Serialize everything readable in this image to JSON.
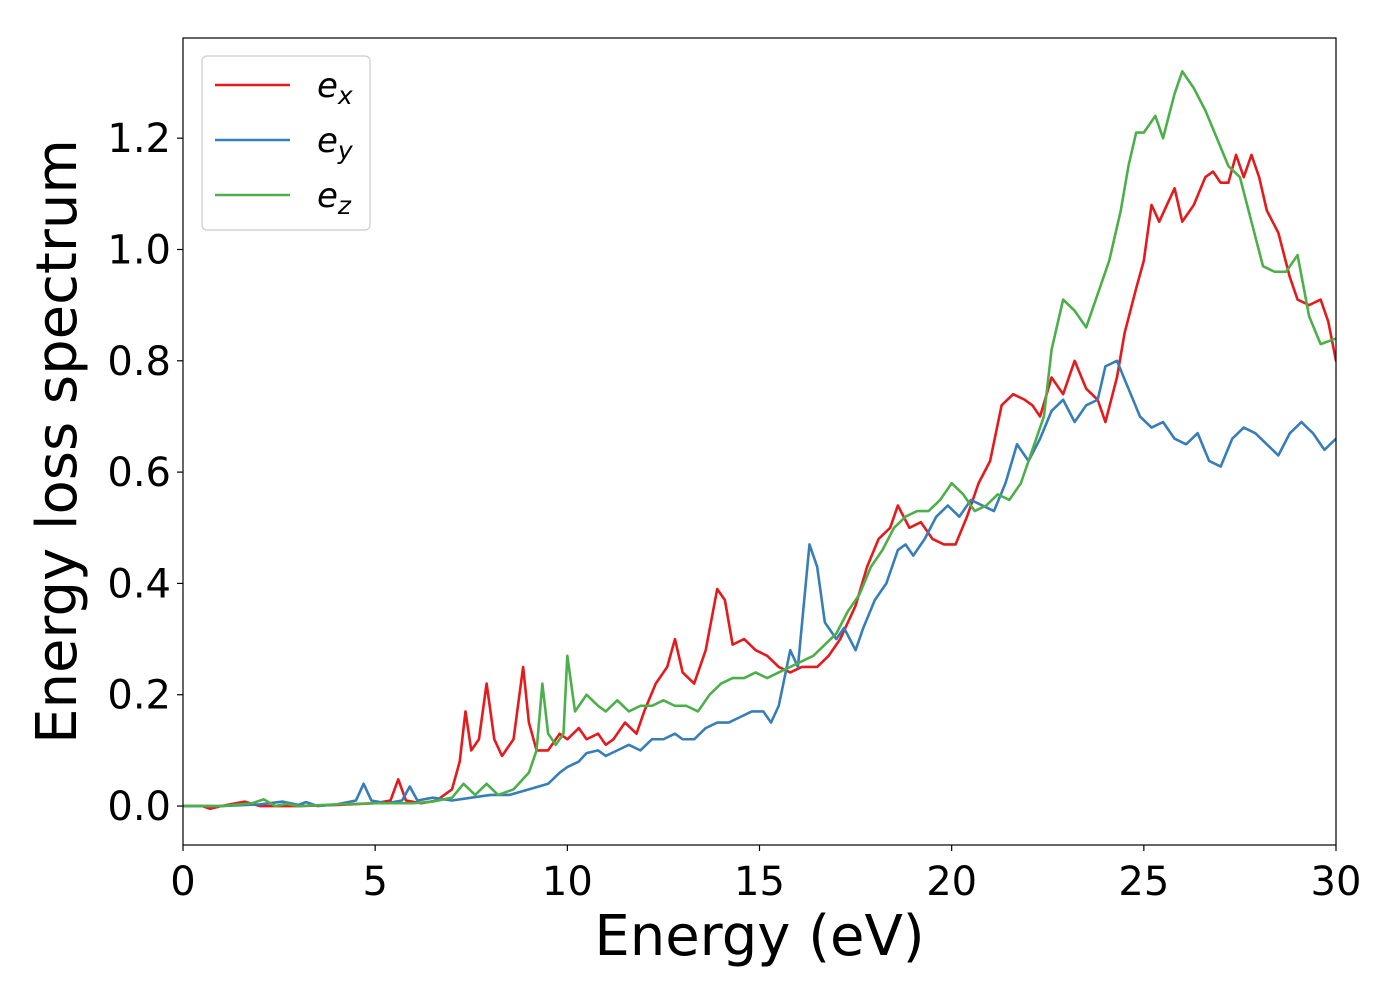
{
  "chart_data": {
    "type": "line",
    "xlabel": "Energy (eV)",
    "ylabel": "Energy loss spectrum",
    "xlim": [
      0,
      30
    ],
    "ylim": [
      -0.07,
      1.38
    ],
    "xticks": [
      0,
      5,
      10,
      15,
      20,
      25,
      30
    ],
    "xtick_labels": [
      "0",
      "5",
      "10",
      "15",
      "20",
      "25",
      "30"
    ],
    "yticks": [
      0.0,
      0.2,
      0.4,
      0.6,
      0.8,
      1.0,
      1.2
    ],
    "ytick_labels": [
      "0.0",
      "0.2",
      "0.4",
      "0.6",
      "0.8",
      "1.0",
      "1.2"
    ],
    "grid": false,
    "legend_position": "top-left",
    "series": [
      {
        "name": "e",
        "subscript": "x",
        "color": "#e41a1c",
        "points": [
          [
            0,
            0
          ],
          [
            0.5,
            0
          ],
          [
            0.7,
            -0.005
          ],
          [
            1.0,
            0.0
          ],
          [
            1.6,
            0.008
          ],
          [
            2.0,
            0.0
          ],
          [
            3.0,
            0.0
          ],
          [
            4.0,
            0.002
          ],
          [
            5.0,
            0.005
          ],
          [
            5.4,
            0.01
          ],
          [
            5.6,
            0.048
          ],
          [
            5.8,
            0.01
          ],
          [
            6.2,
            0.005
          ],
          [
            6.6,
            0.01
          ],
          [
            7.0,
            0.03
          ],
          [
            7.2,
            0.08
          ],
          [
            7.35,
            0.17
          ],
          [
            7.5,
            0.1
          ],
          [
            7.7,
            0.12
          ],
          [
            7.9,
            0.22
          ],
          [
            8.1,
            0.12
          ],
          [
            8.3,
            0.09
          ],
          [
            8.6,
            0.12
          ],
          [
            8.85,
            0.25
          ],
          [
            9.0,
            0.15
          ],
          [
            9.2,
            0.1
          ],
          [
            9.5,
            0.1
          ],
          [
            9.8,
            0.13
          ],
          [
            10.0,
            0.12
          ],
          [
            10.3,
            0.14
          ],
          [
            10.5,
            0.12
          ],
          [
            10.8,
            0.13
          ],
          [
            11.0,
            0.11
          ],
          [
            11.2,
            0.12
          ],
          [
            11.5,
            0.15
          ],
          [
            11.8,
            0.13
          ],
          [
            12.0,
            0.17
          ],
          [
            12.3,
            0.22
          ],
          [
            12.6,
            0.25
          ],
          [
            12.8,
            0.3
          ],
          [
            13.0,
            0.24
          ],
          [
            13.3,
            0.22
          ],
          [
            13.6,
            0.28
          ],
          [
            13.9,
            0.39
          ],
          [
            14.1,
            0.37
          ],
          [
            14.3,
            0.29
          ],
          [
            14.6,
            0.3
          ],
          [
            14.9,
            0.28
          ],
          [
            15.2,
            0.27
          ],
          [
            15.5,
            0.25
          ],
          [
            15.8,
            0.24
          ],
          [
            16.1,
            0.25
          ],
          [
            16.5,
            0.25
          ],
          [
            16.8,
            0.27
          ],
          [
            17.1,
            0.3
          ],
          [
            17.5,
            0.36
          ],
          [
            17.8,
            0.43
          ],
          [
            18.1,
            0.48
          ],
          [
            18.4,
            0.5
          ],
          [
            18.6,
            0.54
          ],
          [
            18.9,
            0.5
          ],
          [
            19.2,
            0.51
          ],
          [
            19.5,
            0.48
          ],
          [
            19.8,
            0.47
          ],
          [
            20.1,
            0.47
          ],
          [
            20.4,
            0.52
          ],
          [
            20.7,
            0.58
          ],
          [
            21.0,
            0.62
          ],
          [
            21.3,
            0.72
          ],
          [
            21.6,
            0.74
          ],
          [
            21.9,
            0.73
          ],
          [
            22.1,
            0.72
          ],
          [
            22.3,
            0.7
          ],
          [
            22.6,
            0.77
          ],
          [
            22.9,
            0.74
          ],
          [
            23.2,
            0.8
          ],
          [
            23.5,
            0.75
          ],
          [
            23.8,
            0.73
          ],
          [
            24.0,
            0.69
          ],
          [
            24.3,
            0.77
          ],
          [
            24.5,
            0.85
          ],
          [
            24.8,
            0.93
          ],
          [
            25.0,
            0.98
          ],
          [
            25.2,
            1.08
          ],
          [
            25.4,
            1.05
          ],
          [
            25.6,
            1.08
          ],
          [
            25.8,
            1.11
          ],
          [
            26.0,
            1.05
          ],
          [
            26.3,
            1.08
          ],
          [
            26.6,
            1.13
          ],
          [
            26.8,
            1.14
          ],
          [
            27.0,
            1.12
          ],
          [
            27.2,
            1.12
          ],
          [
            27.4,
            1.17
          ],
          [
            27.6,
            1.13
          ],
          [
            27.8,
            1.17
          ],
          [
            28.0,
            1.13
          ],
          [
            28.2,
            1.07
          ],
          [
            28.5,
            1.03
          ],
          [
            28.8,
            0.95
          ],
          [
            29.0,
            0.91
          ],
          [
            29.3,
            0.9
          ],
          [
            29.6,
            0.91
          ],
          [
            29.8,
            0.87
          ],
          [
            30.0,
            0.8
          ]
        ]
      },
      {
        "name": "e",
        "subscript": "y",
        "color": "#377eb8",
        "points": [
          [
            0,
            0
          ],
          [
            1.0,
            0.0
          ],
          [
            2.0,
            0.003
          ],
          [
            2.6,
            0.008
          ],
          [
            3.0,
            0.002
          ],
          [
            3.2,
            0.007
          ],
          [
            3.5,
            0.0
          ],
          [
            4.0,
            0.003
          ],
          [
            4.5,
            0.01
          ],
          [
            4.7,
            0.04
          ],
          [
            4.9,
            0.01
          ],
          [
            5.3,
            0.005
          ],
          [
            5.7,
            0.01
          ],
          [
            5.9,
            0.035
          ],
          [
            6.1,
            0.01
          ],
          [
            6.5,
            0.015
          ],
          [
            7.0,
            0.01
          ],
          [
            7.5,
            0.015
          ],
          [
            8.0,
            0.02
          ],
          [
            8.5,
            0.02
          ],
          [
            9.0,
            0.03
          ],
          [
            9.5,
            0.04
          ],
          [
            9.8,
            0.06
          ],
          [
            10.0,
            0.07
          ],
          [
            10.3,
            0.08
          ],
          [
            10.5,
            0.095
          ],
          [
            10.8,
            0.1
          ],
          [
            11.0,
            0.09
          ],
          [
            11.3,
            0.1
          ],
          [
            11.6,
            0.11
          ],
          [
            11.9,
            0.1
          ],
          [
            12.2,
            0.12
          ],
          [
            12.5,
            0.12
          ],
          [
            12.8,
            0.13
          ],
          [
            13.0,
            0.12
          ],
          [
            13.3,
            0.12
          ],
          [
            13.6,
            0.14
          ],
          [
            13.9,
            0.15
          ],
          [
            14.2,
            0.15
          ],
          [
            14.5,
            0.16
          ],
          [
            14.8,
            0.17
          ],
          [
            15.1,
            0.17
          ],
          [
            15.3,
            0.15
          ],
          [
            15.5,
            0.18
          ],
          [
            15.8,
            0.28
          ],
          [
            16.0,
            0.25
          ],
          [
            16.3,
            0.47
          ],
          [
            16.5,
            0.43
          ],
          [
            16.7,
            0.33
          ],
          [
            17.0,
            0.3
          ],
          [
            17.2,
            0.32
          ],
          [
            17.5,
            0.28
          ],
          [
            17.7,
            0.32
          ],
          [
            18.0,
            0.37
          ],
          [
            18.3,
            0.4
          ],
          [
            18.6,
            0.46
          ],
          [
            18.8,
            0.47
          ],
          [
            19.0,
            0.45
          ],
          [
            19.3,
            0.48
          ],
          [
            19.6,
            0.52
          ],
          [
            19.9,
            0.54
          ],
          [
            20.2,
            0.52
          ],
          [
            20.5,
            0.55
          ],
          [
            20.8,
            0.54
          ],
          [
            21.1,
            0.53
          ],
          [
            21.4,
            0.58
          ],
          [
            21.7,
            0.65
          ],
          [
            22.0,
            0.62
          ],
          [
            22.3,
            0.66
          ],
          [
            22.6,
            0.71
          ],
          [
            22.9,
            0.73
          ],
          [
            23.2,
            0.69
          ],
          [
            23.5,
            0.72
          ],
          [
            23.8,
            0.73
          ],
          [
            24.0,
            0.79
          ],
          [
            24.3,
            0.8
          ],
          [
            24.6,
            0.75
          ],
          [
            24.9,
            0.7
          ],
          [
            25.2,
            0.68
          ],
          [
            25.5,
            0.69
          ],
          [
            25.8,
            0.66
          ],
          [
            26.1,
            0.65
          ],
          [
            26.4,
            0.67
          ],
          [
            26.7,
            0.62
          ],
          [
            27.0,
            0.61
          ],
          [
            27.3,
            0.66
          ],
          [
            27.6,
            0.68
          ],
          [
            27.9,
            0.67
          ],
          [
            28.2,
            0.65
          ],
          [
            28.5,
            0.63
          ],
          [
            28.8,
            0.67
          ],
          [
            29.1,
            0.69
          ],
          [
            29.4,
            0.67
          ],
          [
            29.7,
            0.64
          ],
          [
            30.0,
            0.66
          ]
        ]
      },
      {
        "name": "e",
        "subscript": "z",
        "color": "#4daf4a",
        "points": [
          [
            0,
            0
          ],
          [
            1.0,
            0.0
          ],
          [
            1.8,
            0.005
          ],
          [
            2.1,
            0.012
          ],
          [
            2.4,
            0.0
          ],
          [
            2.7,
            0.004
          ],
          [
            3.0,
            0.0
          ],
          [
            4.0,
            0.003
          ],
          [
            5.0,
            0.005
          ],
          [
            6.0,
            0.005
          ],
          [
            6.5,
            0.008
          ],
          [
            7.0,
            0.015
          ],
          [
            7.3,
            0.04
          ],
          [
            7.6,
            0.02
          ],
          [
            7.9,
            0.04
          ],
          [
            8.2,
            0.02
          ],
          [
            8.6,
            0.03
          ],
          [
            9.0,
            0.06
          ],
          [
            9.2,
            0.1
          ],
          [
            9.35,
            0.22
          ],
          [
            9.5,
            0.13
          ],
          [
            9.7,
            0.11
          ],
          [
            9.9,
            0.13
          ],
          [
            10.0,
            0.27
          ],
          [
            10.2,
            0.17
          ],
          [
            10.5,
            0.2
          ],
          [
            10.8,
            0.18
          ],
          [
            11.0,
            0.17
          ],
          [
            11.3,
            0.19
          ],
          [
            11.6,
            0.17
          ],
          [
            11.9,
            0.18
          ],
          [
            12.2,
            0.18
          ],
          [
            12.5,
            0.19
          ],
          [
            12.8,
            0.18
          ],
          [
            13.1,
            0.18
          ],
          [
            13.4,
            0.17
          ],
          [
            13.7,
            0.2
          ],
          [
            14.0,
            0.22
          ],
          [
            14.3,
            0.23
          ],
          [
            14.6,
            0.23
          ],
          [
            14.9,
            0.24
          ],
          [
            15.2,
            0.23
          ],
          [
            15.5,
            0.24
          ],
          [
            15.8,
            0.25
          ],
          [
            16.1,
            0.26
          ],
          [
            16.4,
            0.27
          ],
          [
            16.7,
            0.29
          ],
          [
            17.0,
            0.31
          ],
          [
            17.3,
            0.35
          ],
          [
            17.6,
            0.38
          ],
          [
            17.9,
            0.43
          ],
          [
            18.2,
            0.46
          ],
          [
            18.5,
            0.5
          ],
          [
            18.8,
            0.52
          ],
          [
            19.1,
            0.53
          ],
          [
            19.4,
            0.53
          ],
          [
            19.7,
            0.55
          ],
          [
            20.0,
            0.58
          ],
          [
            20.3,
            0.56
          ],
          [
            20.6,
            0.53
          ],
          [
            20.9,
            0.54
          ],
          [
            21.2,
            0.56
          ],
          [
            21.5,
            0.55
          ],
          [
            21.8,
            0.58
          ],
          [
            22.1,
            0.64
          ],
          [
            22.4,
            0.7
          ],
          [
            22.6,
            0.82
          ],
          [
            22.9,
            0.91
          ],
          [
            23.2,
            0.89
          ],
          [
            23.5,
            0.86
          ],
          [
            23.8,
            0.92
          ],
          [
            24.1,
            0.98
          ],
          [
            24.4,
            1.07
          ],
          [
            24.6,
            1.15
          ],
          [
            24.8,
            1.21
          ],
          [
            25.0,
            1.21
          ],
          [
            25.3,
            1.24
          ],
          [
            25.5,
            1.2
          ],
          [
            25.8,
            1.28
          ],
          [
            26.0,
            1.32
          ],
          [
            26.3,
            1.29
          ],
          [
            26.6,
            1.25
          ],
          [
            26.9,
            1.2
          ],
          [
            27.2,
            1.15
          ],
          [
            27.5,
            1.13
          ],
          [
            27.8,
            1.05
          ],
          [
            28.1,
            0.97
          ],
          [
            28.4,
            0.96
          ],
          [
            28.7,
            0.96
          ],
          [
            29.0,
            0.99
          ],
          [
            29.3,
            0.88
          ],
          [
            29.6,
            0.83
          ],
          [
            30.0,
            0.84
          ]
        ]
      }
    ]
  }
}
